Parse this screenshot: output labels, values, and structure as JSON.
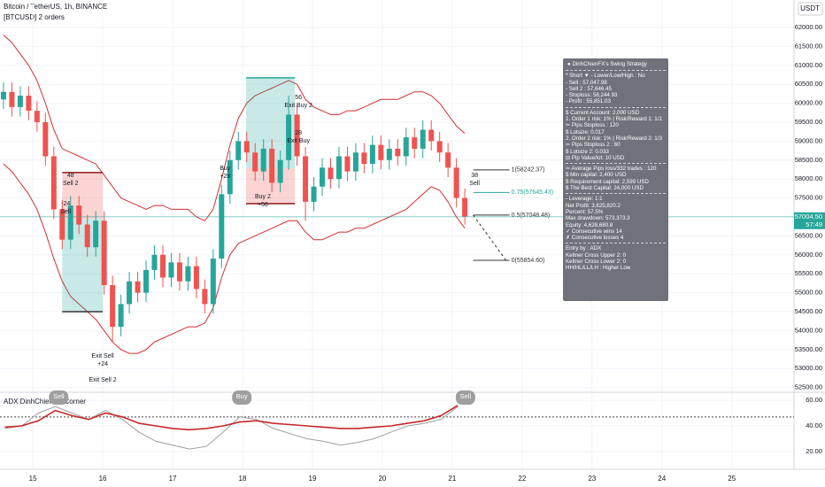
{
  "header": {
    "title": "Bitcoin / TetherUS, 1h, BINANCE",
    "orders": "[BTCUSD] 2 orders",
    "currency": "USDT"
  },
  "chart_data": [
    {
      "type": "candlestick",
      "x": [
        14.58,
        14.7,
        14.82,
        14.94,
        15.06,
        15.18,
        15.3,
        15.42,
        15.54,
        15.66,
        15.78,
        15.9,
        16.02,
        16.14,
        16.26,
        16.38,
        16.5,
        16.62,
        16.74,
        16.86,
        16.98,
        17.1,
        17.22,
        17.34,
        17.46,
        17.58,
        17.7,
        17.82,
        17.94,
        18.06,
        18.18,
        18.3,
        18.42,
        18.54,
        18.66,
        18.78,
        18.9,
        19.02,
        19.14,
        19.26,
        19.38,
        19.5,
        19.62,
        19.74,
        19.86,
        19.98,
        20.1,
        20.22,
        20.34,
        20.46,
        20.58,
        20.7,
        20.82,
        20.94,
        21.06,
        21.18
      ],
      "open": [
        60100,
        60300,
        59900,
        60200,
        59800,
        59500,
        58600,
        57200,
        56400,
        57300,
        56800,
        56200,
        56900,
        55200,
        54100,
        54700,
        55300,
        55000,
        55600,
        56000,
        55400,
        55800,
        55300,
        55700,
        55100,
        54700,
        55900,
        57600,
        58500,
        59000,
        58700,
        58200,
        58800,
        57900,
        58500,
        59700,
        58600,
        57400,
        57800,
        58300,
        58000,
        58600,
        58200,
        58700,
        58400,
        58900,
        58500,
        58800,
        58600,
        59100,
        58800,
        59300,
        59000,
        58700,
        58300,
        57500
      ],
      "high": [
        60550,
        60550,
        60450,
        60450,
        60050,
        59750,
        58850,
        57450,
        57550,
        57550,
        57050,
        57150,
        57150,
        55450,
        54950,
        55550,
        55550,
        55850,
        56250,
        56250,
        56050,
        56050,
        55950,
        55950,
        55350,
        56150,
        57850,
        58750,
        59250,
        59250,
        58950,
        59050,
        59050,
        58750,
        60200,
        59950,
        58850,
        58050,
        58550,
        58550,
        58850,
        58850,
        58950,
        58950,
        59150,
        59150,
        59050,
        59050,
        59350,
        59350,
        59550,
        59550,
        59250,
        58950,
        58550,
        57750
      ],
      "low": [
        59850,
        59650,
        59650,
        59550,
        59250,
        58350,
        56950,
        56150,
        56150,
        56550,
        55950,
        55950,
        54950,
        53700,
        53850,
        54450,
        54750,
        54750,
        55350,
        55150,
        55150,
        55050,
        55050,
        54850,
        54450,
        54450,
        55650,
        57350,
        58250,
        58450,
        57950,
        57950,
        57650,
        57650,
        58250,
        58350,
        56900,
        57150,
        57550,
        57750,
        57750,
        57950,
        57950,
        58150,
        58150,
        58250,
        58250,
        58350,
        58350,
        58550,
        58550,
        58750,
        58450,
        58050,
        57250,
        56800
      ],
      "close": [
        60300,
        59900,
        60200,
        59800,
        59500,
        58600,
        57200,
        56400,
        57300,
        56800,
        56200,
        56900,
        55200,
        54100,
        54700,
        55300,
        55000,
        55600,
        56000,
        55400,
        55800,
        55300,
        55700,
        55100,
        54700,
        55900,
        57600,
        58500,
        59000,
        58700,
        58200,
        58800,
        57900,
        58500,
        59700,
        58600,
        57400,
        57800,
        58300,
        58000,
        58600,
        58200,
        58700,
        58400,
        58900,
        58500,
        58800,
        58600,
        59100,
        58800,
        59300,
        59000,
        58700,
        58300,
        57500,
        57004.5
      ],
      "up_color": "#26a69a",
      "down_color": "#ef5350",
      "bands": {
        "color": "#d32f2f",
        "upper": [
          61800,
          61600,
          61300,
          61000,
          60600,
          60000,
          59300,
          58800,
          58700,
          58600,
          58500,
          58400,
          58100,
          57800,
          57500,
          57400,
          57300,
          57200,
          57300,
          57300,
          57200,
          57200,
          57200,
          57000,
          56900,
          57200,
          58000,
          58900,
          59600,
          60000,
          60200,
          60300,
          60400,
          60500,
          60600,
          60500,
          60100,
          59900,
          59800,
          59700,
          59700,
          59800,
          59800,
          59900,
          60000,
          60100,
          60100,
          60100,
          60200,
          60300,
          60300,
          60200,
          60000,
          59700,
          59400,
          59200
        ],
        "lower": [
          58400,
          58200,
          57900,
          57600,
          57200,
          56600,
          55900,
          55300,
          54900,
          54700,
          54500,
          54300,
          54000,
          53700,
          53500,
          53400,
          53400,
          53500,
          53700,
          53800,
          53900,
          54000,
          54100,
          54100,
          54200,
          54600,
          55400,
          56000,
          56300,
          56400,
          56500,
          56600,
          56700,
          56800,
          56900,
          56900,
          56600,
          56400,
          56400,
          56500,
          56600,
          56600,
          56700,
          56700,
          56800,
          56900,
          57000,
          57100,
          57200,
          57400,
          57600,
          57800,
          57700,
          57400,
          57000,
          56700
        ]
      },
      "xlim": [
        14.53,
        25.89
      ],
      "xticks": [
        15,
        16,
        17,
        18,
        19,
        20,
        21,
        22,
        23,
        24,
        25
      ],
      "ylim": [
        52397,
        62724
      ],
      "yticks": [
        {
          "value": 52500,
          "label": "52500.00"
        },
        {
          "value": 53000,
          "label": "53000.00"
        },
        {
          "value": 53500,
          "label": "53500.00"
        },
        {
          "value": 54000,
          "label": "54000.00"
        },
        {
          "value": 54500,
          "label": "54500.00"
        },
        {
          "value": 55000,
          "label": "55000.00"
        },
        {
          "value": 55500,
          "label": "55500.00"
        },
        {
          "value": 56000,
          "label": "56000.00"
        },
        {
          "value": 56500,
          "label": "56500.00"
        },
        {
          "value": 57000,
          "label": "57000.00"
        },
        {
          "value": 57500,
          "label": "57500.00"
        },
        {
          "value": 58000,
          "label": "58000.00"
        },
        {
          "value": 58500,
          "label": "58500.00"
        },
        {
          "value": 59000,
          "label": "59000.00"
        },
        {
          "value": 59500,
          "label": "59500.00"
        },
        {
          "value": 60000,
          "label": "60000.00"
        },
        {
          "value": 60500,
          "label": "60500.00"
        },
        {
          "value": 61000,
          "label": "61000.00"
        },
        {
          "value": 61500,
          "label": "61500.00"
        },
        {
          "value": 62000,
          "label": "62000.00"
        }
      ],
      "grid": true,
      "last_price": {
        "value": 57004.5,
        "label": "57004.50",
        "countdown": "57:49",
        "color": "#26a69a"
      },
      "positions": [
        {
          "x0": 15.42,
          "x1": 16.0,
          "entry": 56950,
          "stop": 58170,
          "target": 54500
        },
        {
          "x0": 18.05,
          "x1": 18.75,
          "entry": 58285,
          "stop": 57350,
          "target": 60670
        }
      ],
      "profit_color": "#26a69a",
      "loss_color": "#ef5350",
      "annotations": [
        {
          "x": 15.54,
          "y": 58098,
          "lines": [
            "48",
            "Sell 2"
          ]
        },
        {
          "x": 15.47,
          "y": 57350,
          "lines": [
            "-24",
            "Sell"
          ]
        },
        {
          "x": 16.0,
          "y": 53332,
          "lines": [
            "Exit Sell",
            "+24",
            "",
            "Exit Sell 2"
          ]
        },
        {
          "x": 17.75,
          "y": 58285,
          "lines": [
            "Buy",
            "+28"
          ]
        },
        {
          "x": 18.29,
          "y": 57537,
          "lines": [
            "Buy 2",
            "+56"
          ]
        },
        {
          "x": 18.8,
          "y": 60154,
          "lines": [
            "56",
            "Exit Buy 2"
          ]
        },
        {
          "x": 18.8,
          "y": 59220,
          "lines": [
            "28",
            "Exit Buy"
          ]
        },
        {
          "x": 21.32,
          "y": 58098,
          "lines": [
            "38",
            "Sell"
          ]
        }
      ],
      "fib_x": [
        21.3,
        21.82
      ],
      "fib_levels": [
        {
          "value": 58242.37,
          "label": "1(58242.37)",
          "color": "#333333"
        },
        {
          "value": 57645.43,
          "label": "0.75(57645.43)",
          "color": "#26a69a"
        },
        {
          "value": 57048.48,
          "label": "0.5(57048.48)",
          "color": "#333333"
        },
        {
          "value": 55854.6,
          "label": "0(55854.60)",
          "color": "#333333"
        }
      ]
    },
    {
      "type": "line",
      "title": "ADX DinhChienFX Corner",
      "x": [
        14.6,
        14.84,
        15.08,
        15.32,
        15.56,
        15.8,
        16.04,
        16.28,
        16.52,
        16.76,
        17.0,
        17.24,
        17.48,
        17.72,
        17.96,
        18.2,
        18.44,
        18.68,
        18.92,
        19.16,
        19.4,
        19.64,
        19.88,
        20.12,
        20.36,
        20.6,
        20.84,
        21.08
      ],
      "series": [
        {
          "color": "#9e9e9e",
          "values": [
            38,
            40,
            50,
            55,
            50,
            45,
            52,
            45,
            35,
            28,
            25,
            22,
            24,
            35,
            47,
            45,
            38,
            34,
            30,
            28,
            25,
            27,
            30,
            35,
            40,
            42,
            45,
            55
          ]
        },
        {
          "color": "#c62828",
          "values": [
            39,
            40,
            44,
            52,
            48,
            45,
            50,
            47,
            42,
            40,
            38,
            37,
            38,
            40,
            43,
            44,
            42,
            41,
            40,
            39,
            38,
            38,
            39,
            40,
            42,
            44,
            48,
            56
          ]
        }
      ],
      "ylim": [
        6.2,
        64.8
      ],
      "yticks": [
        {
          "value": 20,
          "label": "20.00"
        },
        {
          "value": 40,
          "label": "40.00"
        },
        {
          "value": 60,
          "label": "60.00"
        }
      ],
      "threshold": 47,
      "signal_color": "#9e9e9e",
      "signals": [
        {
          "label": "Sell",
          "x": 15.37
        },
        {
          "label": "Buy",
          "x": 17.99
        },
        {
          "label": "Sell",
          "x": 21.19
        }
      ]
    }
  ],
  "strategy_box": {
    "title": "DinhChienFX's Swing Strategy",
    "sections": [
      [
        "* Short ▼ - Lower/Low/High : No",
        "- Sell : 57,047.98",
        "- Sell 2 : 57,646.45",
        "- Stoploss: 58,244.93",
        "- Profit : 55,851.03"
      ],
      [
        "$ Current Account: 2,000 USD",
        "1. Order 1 risk: 1% | Risk/Reward 1: 1/1",
        "✂ Pips Stoploss : 120",
        "$ Lotsize: 0.017",
        "2. Order 2 risk: 1% | Risk/Reward 2: 1/3",
        "✂ Pips Stoploss 2 : 60",
        "$ Lotsize 2: 0.033",
        "⊟ Pip Value/lot: 10 USD"
      ],
      [
        "✂ Average Pips loss/332 trades : 120",
        "$ Min capital: 2,400 USD",
        "$ Requirement capital: 2,599 USD",
        "$ The Best Capital: 24,000 USD"
      ],
      [
        "- Leverage: 1:1",
        "Net Profit: 3,625,820.2",
        "Percent: 57.5%",
        "Max drawdown: 573,373.3",
        "Equity: 4,628,680.8",
        "✓ Consecutive wins 14",
        "✗ Consecutive losses 4"
      ],
      [
        "Entry by : ADX",
        "Keltner Cross Upper 2: 0",
        "Keltner Cross Lower 2: 0",
        "HH/HL/LL/LH : Higher Low"
      ]
    ]
  }
}
